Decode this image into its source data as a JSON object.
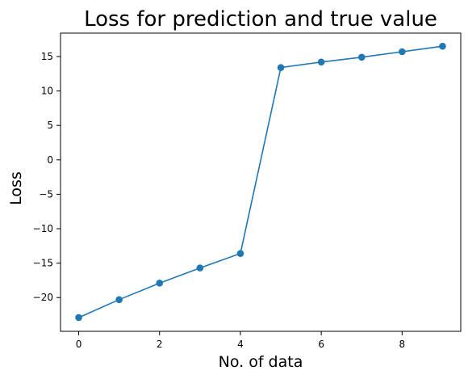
{
  "chart_data": {
    "type": "line",
    "title": "Loss for prediction and true value",
    "xlabel": "No. of data",
    "ylabel": "Loss",
    "x": [
      0,
      1,
      2,
      3,
      4,
      5,
      6,
      7,
      8,
      9
    ],
    "series": [
      {
        "name": "Loss",
        "values": [
          -22.9,
          -20.3,
          -17.9,
          -15.7,
          -13.6,
          13.4,
          14.2,
          14.9,
          15.7,
          16.5
        ],
        "color": "#1f77b4",
        "marker": "circle"
      }
    ],
    "xlim": [
      -0.45,
      9.45
    ],
    "ylim": [
      -24.9,
      18.4
    ],
    "xticks": [
      0,
      2,
      4,
      6,
      8
    ],
    "yticks": [
      -20,
      -15,
      -10,
      -5,
      0,
      5,
      10,
      15
    ],
    "xtick_labels": [
      "0",
      "2",
      "4",
      "6",
      "8"
    ],
    "ytick_labels": [
      "−20",
      "−15",
      "−10",
      "−5",
      "0",
      "5",
      "10",
      "15"
    ],
    "grid": false,
    "legend": "none"
  }
}
